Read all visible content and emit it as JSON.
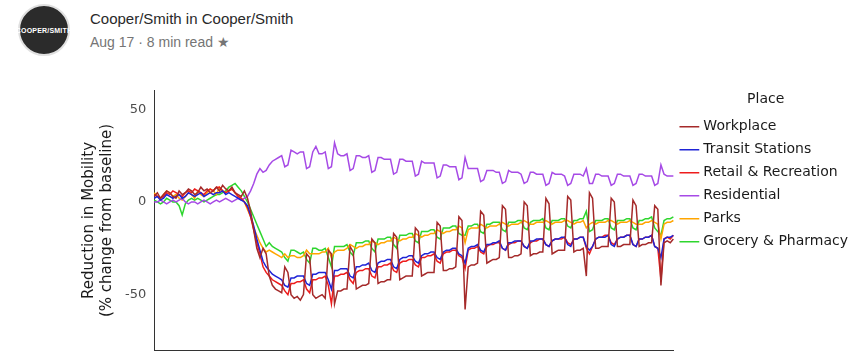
{
  "header": {
    "avatar_text": "COOPER/SMITH",
    "byline": "Cooper/Smith in Cooper/Smith",
    "meta": "Aug 17 · 8 min read ★"
  },
  "chart_data": {
    "type": "line",
    "y_label": [
      "Reduction in Mobility",
      "(% change from baseline)"
    ],
    "legend_title": "Place",
    "legend": "right",
    "grid": false,
    "tick_labels": "y",
    "ylim": [
      -80,
      60
    ],
    "yticks": [
      -50,
      0,
      50
    ],
    "categories": [
      null,
      null,
      null,
      null,
      null,
      null,
      null,
      null,
      null,
      null,
      null,
      null,
      null,
      null,
      null,
      null,
      null,
      null,
      null,
      null,
      null,
      null,
      null,
      null,
      null,
      null,
      null,
      null,
      null,
      null,
      null,
      null,
      null,
      null,
      null,
      null,
      null,
      null,
      null,
      null,
      null,
      null,
      null,
      null,
      null,
      null,
      null,
      null,
      null,
      null,
      null,
      null,
      null,
      null,
      null,
      null,
      null,
      null,
      null,
      null,
      null,
      null,
      null,
      null,
      null,
      null,
      null,
      null,
      null,
      null,
      null,
      null,
      null,
      null,
      null,
      null,
      null,
      null,
      null,
      null,
      null,
      null,
      null,
      null,
      null,
      null,
      null,
      null,
      null,
      null,
      null,
      null,
      null,
      null,
      null,
      null,
      null,
      null,
      null,
      null,
      null,
      null,
      null,
      null,
      null,
      null,
      null,
      null,
      null,
      null,
      null,
      null,
      null,
      null,
      null,
      null,
      null,
      null,
      null,
      null,
      null,
      null,
      null,
      null,
      null,
      null,
      null,
      null,
      null,
      null,
      null,
      null,
      null,
      null,
      null,
      null,
      null,
      null,
      null,
      null,
      null,
      null,
      null,
      null,
      null,
      null,
      null,
      null,
      null,
      null,
      null,
      null,
      null,
      null,
      null,
      null,
      null,
      null,
      null,
      null,
      null,
      null,
      null,
      null,
      null,
      null,
      null,
      null
    ],
    "series": [
      {
        "name": "Grocery & Pharmacy",
        "color": "#2ed62e",
        "values": [
          1,
          0,
          -1,
          0,
          2,
          1,
          0,
          0,
          -2,
          -7,
          -1,
          1,
          2,
          1,
          2,
          1,
          0,
          1,
          2,
          3,
          4,
          4,
          5,
          6,
          8,
          9,
          10,
          8,
          6,
          3,
          0,
          -4,
          -8,
          -12,
          -16,
          -20,
          -24,
          -22,
          -24,
          -25,
          -26,
          -27,
          -30,
          -32,
          -26,
          -26,
          -27,
          -28,
          -27,
          -31,
          -33,
          -25,
          -25,
          -26,
          -26,
          -25,
          -30,
          -35,
          -24,
          -24,
          -24,
          -24,
          -23,
          -27,
          -29,
          -22,
          -22,
          -22,
          -21,
          -21,
          -25,
          -27,
          -20,
          -20,
          -20,
          -19,
          -19,
          -23,
          -25,
          -18,
          -18,
          -18,
          -17,
          -17,
          -21,
          -22,
          -16,
          -16,
          -16,
          -15,
          -15,
          -19,
          -20,
          -14,
          -14,
          -14,
          -13,
          -13,
          -17,
          -18,
          -18,
          -13,
          -13,
          -12,
          -12,
          -16,
          -17,
          -12,
          -12,
          -11,
          -11,
          -11,
          -15,
          -16,
          -11,
          -11,
          -11,
          -10,
          -10,
          -14,
          -15,
          -11,
          -10,
          -10,
          -10,
          -9,
          -14,
          -15,
          -10,
          -10,
          -10,
          -9,
          -9,
          -13,
          -14,
          -10,
          -10,
          -9,
          -9,
          -5,
          -16,
          -15,
          -10,
          -10,
          -10,
          -9,
          -9,
          -14,
          -15,
          -10,
          -10,
          -10,
          -9,
          -9,
          -14,
          -15,
          -10,
          -10,
          -9,
          -9,
          -8,
          -14,
          -16,
          -18,
          -10,
          -9,
          -9,
          -8
        ]
      },
      {
        "name": "Parks",
        "color": "#ffa500",
        "values": [
          5,
          3,
          2,
          4,
          6,
          5,
          3,
          4,
          2,
          1,
          3,
          5,
          4,
          2,
          6,
          4,
          3,
          5,
          7,
          6,
          4,
          8,
          6,
          5,
          6,
          7,
          5,
          3,
          2,
          0,
          -4,
          -8,
          -14,
          -18,
          -22,
          -25,
          -27,
          -26,
          -27,
          -28,
          -29,
          -30,
          -28,
          -30,
          -29,
          -29,
          -30,
          -30,
          -29,
          -26,
          -28,
          -28,
          -28,
          -28,
          -27,
          -27,
          -25,
          -30,
          -27,
          -26,
          -26,
          -26,
          -25,
          -23,
          -24,
          -25,
          -24,
          -24,
          -23,
          -23,
          -21,
          -22,
          -23,
          -22,
          -22,
          -21,
          -21,
          -19,
          -20,
          -21,
          -20,
          -20,
          -19,
          -19,
          -17,
          -18,
          -19,
          -18,
          -18,
          -17,
          -17,
          -15,
          -16,
          -17,
          -16,
          -16,
          -15,
          -15,
          -13,
          -14,
          -22,
          -15,
          -14,
          -14,
          -14,
          -12,
          -13,
          -14,
          -13,
          -13,
          -13,
          -12,
          -11,
          -12,
          -13,
          -12,
          -12,
          -12,
          -11,
          -10,
          -11,
          -12,
          -12,
          -11,
          -11,
          -11,
          -10,
          -11,
          -12,
          -11,
          -11,
          -11,
          -10,
          -10,
          -11,
          -12,
          -11,
          -11,
          -10,
          -14,
          -12,
          -11,
          -12,
          -11,
          -11,
          -11,
          -10,
          -10,
          -11,
          -12,
          -11,
          -11,
          -11,
          -10,
          -11,
          -12,
          -12,
          -12,
          -11,
          -11,
          -10,
          -11,
          -12,
          -20,
          -12,
          -11,
          -11,
          -10
        ]
      },
      {
        "name": "Residential",
        "color": "#a64ae6",
        "values": [
          0,
          0,
          1,
          0,
          -1,
          0,
          1,
          0,
          1,
          2,
          0,
          -1,
          0,
          0,
          -1,
          0,
          1,
          0,
          -1,
          0,
          1,
          0,
          1,
          2,
          1,
          0,
          1,
          2,
          1,
          2,
          3,
          6,
          10,
          15,
          18,
          16,
          17,
          20,
          22,
          23,
          24,
          25,
          19,
          20,
          28,
          27,
          26,
          27,
          27,
          18,
          19,
          27,
          30,
          26,
          26,
          27,
          18,
          19,
          32,
          26,
          25,
          25,
          26,
          17,
          18,
          25,
          25,
          24,
          24,
          25,
          16,
          17,
          24,
          24,
          23,
          23,
          23,
          15,
          16,
          23,
          23,
          22,
          22,
          22,
          14,
          15,
          22,
          21,
          21,
          21,
          21,
          13,
          14,
          20,
          20,
          19,
          19,
          19,
          12,
          13,
          24,
          18,
          18,
          18,
          18,
          11,
          12,
          17,
          17,
          17,
          16,
          16,
          10,
          11,
          17,
          16,
          16,
          16,
          15,
          10,
          11,
          16,
          16,
          15,
          15,
          15,
          9,
          10,
          16,
          15,
          15,
          15,
          14,
          9,
          10,
          15,
          15,
          15,
          14,
          18,
          10,
          10,
          15,
          15,
          14,
          14,
          14,
          9,
          10,
          15,
          15,
          14,
          14,
          14,
          9,
          10,
          15,
          15,
          14,
          14,
          14,
          9,
          10,
          20,
          15,
          14,
          14,
          14
        ]
      },
      {
        "name": "Retail & Recreation",
        "color": "#ee1c1c",
        "values": [
          4,
          3,
          2,
          3,
          5,
          4,
          6,
          5,
          4,
          3,
          5,
          6,
          5,
          7,
          6,
          5,
          4,
          6,
          7,
          6,
          8,
          8,
          6,
          5,
          6,
          7,
          5,
          3,
          2,
          0,
          -3,
          -8,
          -15,
          -22,
          -28,
          -35,
          -38,
          -40,
          -42,
          -43,
          -44,
          -45,
          -48,
          -50,
          -44,
          -44,
          -43,
          -43,
          -42,
          -47,
          -49,
          -42,
          -42,
          -41,
          -41,
          -40,
          -45,
          -55,
          -40,
          -40,
          -39,
          -39,
          -38,
          -42,
          -44,
          -38,
          -37,
          -37,
          -36,
          -36,
          -40,
          -41,
          -35,
          -35,
          -34,
          -34,
          -33,
          -37,
          -38,
          -33,
          -32,
          -32,
          -31,
          -31,
          -34,
          -35,
          -30,
          -30,
          -29,
          -29,
          -28,
          -32,
          -33,
          -28,
          -27,
          -27,
          -26,
          -26,
          -29,
          -30,
          -36,
          -26,
          -25,
          -25,
          -24,
          -27,
          -28,
          -24,
          -23,
          -23,
          -22,
          -22,
          -25,
          -26,
          -23,
          -22,
          -22,
          -21,
          -21,
          -24,
          -25,
          -22,
          -21,
          -21,
          -20,
          -20,
          -23,
          -24,
          -21,
          -20,
          -20,
          -20,
          -19,
          -22,
          -23,
          -20,
          -20,
          -19,
          -19,
          -25,
          -28,
          -24,
          -20,
          -19,
          -19,
          -18,
          -18,
          -22,
          -23,
          -20,
          -19,
          -19,
          -18,
          -18,
          -23,
          -24,
          -20,
          -20,
          -19,
          -19,
          -18,
          -24,
          -25,
          -42,
          -20,
          -19,
          -20,
          -18
        ]
      },
      {
        "name": "Transit Stations",
        "color": "#1f24d6",
        "values": [
          2,
          3,
          1,
          2,
          4,
          3,
          2,
          3,
          4,
          2,
          3,
          5,
          4,
          3,
          4,
          5,
          3,
          4,
          5,
          4,
          5,
          5,
          6,
          4,
          5,
          4,
          3,
          2,
          1,
          0,
          -2,
          -7,
          -13,
          -20,
          -26,
          -32,
          -35,
          -37,
          -39,
          -40,
          -41,
          -42,
          -45,
          -46,
          -41,
          -41,
          -40,
          -40,
          -40,
          -44,
          -45,
          -39,
          -39,
          -38,
          -38,
          -38,
          -42,
          -47,
          -37,
          -37,
          -36,
          -36,
          -36,
          -40,
          -41,
          -35,
          -35,
          -34,
          -34,
          -33,
          -37,
          -38,
          -33,
          -32,
          -32,
          -31,
          -31,
          -35,
          -36,
          -31,
          -30,
          -30,
          -29,
          -29,
          -32,
          -33,
          -29,
          -28,
          -28,
          -27,
          -27,
          -30,
          -31,
          -27,
          -26,
          -26,
          -25,
          -25,
          -28,
          -29,
          -33,
          -25,
          -24,
          -24,
          -23,
          -26,
          -27,
          -23,
          -23,
          -22,
          -22,
          -21,
          -25,
          -26,
          -22,
          -22,
          -21,
          -21,
          -21,
          -24,
          -25,
          -21,
          -21,
          -20,
          -20,
          -20,
          -23,
          -24,
          -21,
          -20,
          -20,
          -19,
          -19,
          -23,
          -24,
          -20,
          -20,
          -19,
          -19,
          -24,
          -26,
          -24,
          -20,
          -19,
          -19,
          -19,
          -18,
          -23,
          -24,
          -20,
          -19,
          -19,
          -18,
          -18,
          -23,
          -24,
          -20,
          -20,
          -19,
          -19,
          -18,
          -24,
          -25,
          -30,
          -20,
          -19,
          -19,
          -18
        ]
      },
      {
        "name": "Workplace",
        "color": "#a52a2a",
        "values": [
          3,
          5,
          2,
          4,
          6,
          5,
          3,
          2,
          6,
          4,
          5,
          7,
          6,
          4,
          5,
          8,
          6,
          7,
          5,
          6,
          8,
          6,
          9,
          7,
          6,
          8,
          5,
          4,
          3,
          6,
          2,
          -5,
          -15,
          -25,
          -30,
          -25,
          -28,
          -40,
          -45,
          -47,
          -48,
          -49,
          -35,
          -38,
          -50,
          -52,
          -51,
          -53,
          -50,
          -28,
          -30,
          -50,
          -52,
          -51,
          -50,
          -52,
          -26,
          -28,
          -55,
          -48,
          -48,
          -47,
          -47,
          -24,
          -27,
          -47,
          -46,
          -45,
          -45,
          -44,
          -20,
          -22,
          -44,
          -43,
          -43,
          -42,
          -42,
          -17,
          -19,
          -42,
          -41,
          -40,
          -40,
          -40,
          -14,
          -16,
          -40,
          -39,
          -38,
          -38,
          -38,
          -11,
          -13,
          -37,
          -37,
          -36,
          -36,
          -35,
          -8,
          -10,
          -58,
          -35,
          -34,
          -34,
          -33,
          -5,
          -7,
          -33,
          -32,
          -31,
          -31,
          -30,
          -2,
          -4,
          -30,
          -30,
          -29,
          -29,
          -28,
          0,
          -2,
          -29,
          -28,
          -28,
          -27,
          -27,
          2,
          -1,
          -28,
          -27,
          -26,
          -26,
          -26,
          3,
          1,
          -27,
          -26,
          -26,
          -25,
          -40,
          5,
          2,
          -25,
          -25,
          -24,
          -24,
          -24,
          2,
          0,
          -24,
          -24,
          -23,
          -23,
          -23,
          1,
          -2,
          -24,
          -23,
          -23,
          -22,
          -22,
          -2,
          -4,
          -45,
          -22,
          -21,
          -22,
          -20
        ]
      }
    ]
  }
}
